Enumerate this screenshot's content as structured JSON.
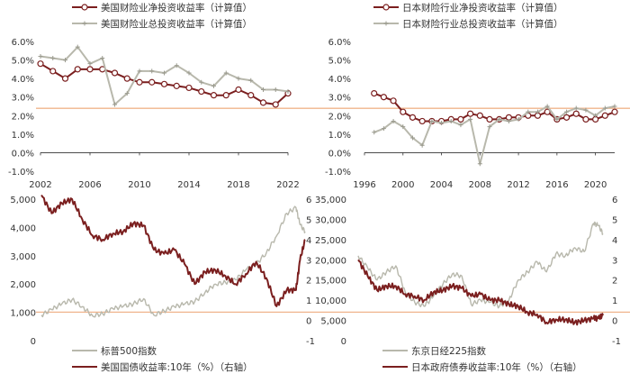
{
  "colors": {
    "net": "#7b1f1f",
    "total": "#b8b8ac",
    "index": "#b8b8ac",
    "yield": "#7b1f1f",
    "refline": "#f0b48c",
    "axis": "#333333"
  },
  "chart_data": [
    {
      "id": "us_insurance",
      "type": "line",
      "legend": [
        "美国财险业净投资收益率（计算值）",
        "美国财险业总投资收益率（计算值）"
      ],
      "x_ticks": [
        "2002",
        "2006",
        "2010",
        "2014",
        "2018",
        "2022"
      ],
      "y_ticks": [
        "6.0%",
        "5.0%",
        "4.0%",
        "3.0%",
        "2.0%",
        "1.0%",
        "0.0%",
        "-1.0%"
      ],
      "ylim": [
        -1,
        6
      ],
      "xlim": [
        2002,
        2022
      ],
      "x": [
        2002,
        2003,
        2004,
        2005,
        2006,
        2007,
        2008,
        2009,
        2010,
        2011,
        2012,
        2013,
        2014,
        2015,
        2016,
        2017,
        2018,
        2019,
        2020,
        2021,
        2022
      ],
      "series": [
        {
          "name": "美国财险业净投资收益率（计算值）",
          "values": [
            4.8,
            4.4,
            4.0,
            4.5,
            4.5,
            4.5,
            4.3,
            4.0,
            3.8,
            3.8,
            3.7,
            3.6,
            3.5,
            3.3,
            3.1,
            3.1,
            3.4,
            3.1,
            2.7,
            2.6,
            3.2
          ]
        },
        {
          "name": "美国财险业总投资收益率（计算值）",
          "values": [
            5.2,
            5.1,
            5.0,
            5.7,
            4.8,
            5.1,
            2.6,
            3.2,
            4.4,
            4.4,
            4.3,
            4.7,
            4.3,
            3.8,
            3.6,
            4.3,
            4.0,
            3.9,
            3.4,
            3.4,
            3.3
          ]
        }
      ],
      "refline": 2.45
    },
    {
      "id": "jp_insurance",
      "type": "line",
      "legend": [
        "日本财险行业净投资收益率（计算值）",
        "日本财险行业总投资收益率（计算值）"
      ],
      "x_ticks": [
        "1996",
        "2000",
        "2004",
        "2008",
        "2012",
        "2016",
        "2020"
      ],
      "y_ticks": [
        "6.0%",
        "5.0%",
        "4.0%",
        "3.0%",
        "2.0%",
        "1.0%",
        "0.0%",
        "-1.0%"
      ],
      "ylim": [
        -1,
        6
      ],
      "xlim": [
        1996,
        2022
      ],
      "x": [
        1997,
        1998,
        1999,
        2000,
        2001,
        2002,
        2003,
        2004,
        2005,
        2006,
        2007,
        2008,
        2009,
        2010,
        2011,
        2012,
        2013,
        2014,
        2015,
        2016,
        2017,
        2018,
        2019,
        2020,
        2021,
        2022
      ],
      "series": [
        {
          "name": "日本财险行业净投资收益率（计算值）",
          "values": [
            3.2,
            3.0,
            2.8,
            2.2,
            1.9,
            1.7,
            1.7,
            1.7,
            1.8,
            1.8,
            2.1,
            2.0,
            1.8,
            1.8,
            1.9,
            1.9,
            2.0,
            2.0,
            2.2,
            1.8,
            1.9,
            2.1,
            1.8,
            1.8,
            2.0,
            2.2
          ]
        },
        {
          "name": "日本财险行业总投资收益率（计算值）",
          "values": [
            1.1,
            1.3,
            1.7,
            1.4,
            0.8,
            0.4,
            1.7,
            1.6,
            1.7,
            1.5,
            1.8,
            -0.6,
            1.4,
            1.8,
            1.7,
            1.8,
            2.2,
            2.2,
            2.5,
            1.8,
            2.2,
            2.4,
            2.3,
            2.0,
            2.4,
            2.5
          ]
        }
      ],
      "refline": 2.45
    },
    {
      "id": "us_market",
      "type": "line",
      "legend": [
        "标普500指数",
        "美国国债收益率:10年（%）（右轴）"
      ],
      "x_ticks": [],
      "y_ticks": [
        "5,000",
        "4,000",
        "3,000",
        "2,000",
        "1,000",
        "0"
      ],
      "y2_ticks": [
        "6",
        "5",
        "4",
        "3",
        "2",
        "1",
        "0",
        "-1"
      ],
      "ylim": [
        0,
        5000
      ],
      "y2lim": [
        -1,
        6
      ],
      "xlim": [
        1997,
        2022
      ],
      "x": [
        1997,
        1998,
        1999,
        2000,
        2001,
        2002,
        2003,
        2004,
        2005,
        2006,
        2007,
        2008,
        2009,
        2010,
        2011,
        2012,
        2013,
        2014,
        2015,
        2016,
        2017,
        2018,
        2019,
        2020,
        2021,
        2021.9,
        2022.3,
        2022.8
      ],
      "series": [
        {
          "name": "标普500指数",
          "axis": "left",
          "values": [
            900,
            1100,
            1300,
            1450,
            1200,
            880,
            950,
            1130,
            1210,
            1300,
            1480,
            900,
            1050,
            1200,
            1290,
            1380,
            1700,
            2000,
            2060,
            2150,
            2500,
            2700,
            3100,
            3700,
            4500,
            4700,
            4100,
            3850
          ]
        },
        {
          "name": "美国国债收益率:10年（%）（右轴）",
          "axis": "right",
          "values": [
            6.2,
            5.3,
            5.8,
            6.0,
            5.0,
            4.2,
            4.0,
            4.3,
            4.4,
            4.8,
            4.7,
            3.5,
            3.3,
            3.5,
            2.8,
            1.8,
            2.4,
            2.5,
            2.2,
            1.8,
            2.3,
            2.9,
            2.1,
            0.7,
            1.5,
            1.5,
            3.0,
            4.0
          ]
        }
      ],
      "refline": 1.0
    },
    {
      "id": "jp_market",
      "type": "line",
      "legend": [
        "东京日经225指数",
        "日本政府债券收益率:10年（%）（右轴）"
      ],
      "x_ticks": [],
      "y_ticks": [
        "35,000",
        "30,000",
        "25,000",
        "20,000",
        "15,000",
        "10,000",
        "5,000",
        "0"
      ],
      "y2_ticks": [
        "6",
        "5",
        "4",
        "3",
        "2",
        "1",
        "0",
        "-1"
      ],
      "ylim": [
        0,
        35000
      ],
      "y2lim": [
        -1,
        6
      ],
      "xlim": [
        1996,
        2022
      ],
      "x": [
        1996,
        1997,
        1998,
        1999,
        2000,
        2001,
        2002,
        2003,
        2004,
        2005,
        2006,
        2007,
        2008,
        2009,
        2010,
        2011,
        2012,
        2013,
        2014,
        2015,
        2016,
        2017,
        2018,
        2019,
        2020,
        2021,
        2021.5,
        2022
      ],
      "series": [
        {
          "name": "东京日经225指数",
          "axis": "left",
          "values": [
            21000,
            18000,
            15000,
            17000,
            18500,
            12000,
            9500,
            8500,
            11000,
            14000,
            16500,
            16000,
            9000,
            10000,
            9500,
            8500,
            10000,
            15000,
            17000,
            19500,
            17000,
            21500,
            21000,
            23000,
            22000,
            29000,
            28500,
            26500
          ]
        },
        {
          "name": "日本政府债券收益率:10年（%）（右轴）",
          "axis": "right",
          "values": [
            3.0,
            2.2,
            1.5,
            1.7,
            1.7,
            1.3,
            1.2,
            1.0,
            1.4,
            1.5,
            1.7,
            1.6,
            1.2,
            1.3,
            1.0,
            1.0,
            0.8,
            0.7,
            0.4,
            0.3,
            -0.1,
            0.05,
            0.05,
            -0.1,
            0.0,
            0.1,
            0.1,
            0.25
          ]
        }
      ],
      "refline": 1.0
    }
  ]
}
